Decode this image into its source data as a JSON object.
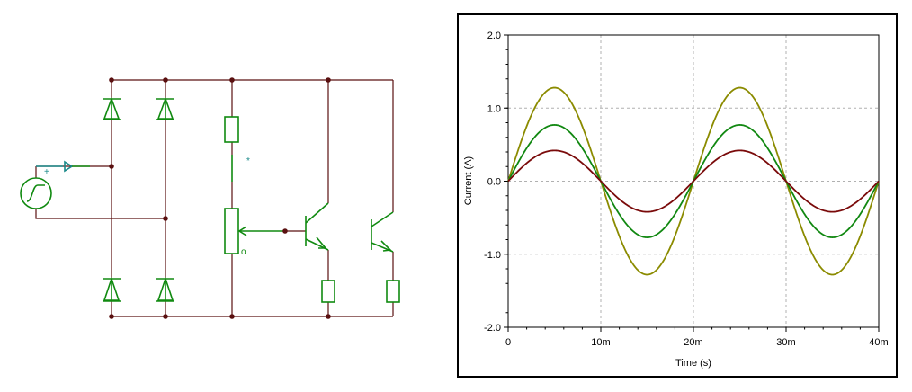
{
  "schematic": {
    "wire_color": "#5a1010",
    "component_color": "#108a10",
    "accent_color": "#1a8a8a",
    "source_plus": "+",
    "asterisk": "*",
    "wiper_mark": "o"
  },
  "chart_data": {
    "type": "line",
    "title": "",
    "xlabel": "Time (s)",
    "ylabel": "Current (A)",
    "xlim": [
      0,
      0.04
    ],
    "ylim": [
      -2.0,
      2.0
    ],
    "grid": true,
    "x_tick_labels": [
      "0",
      "10m",
      "20m",
      "30m",
      "40m"
    ],
    "y_tick_labels": [
      "2.0",
      "1.0",
      "0.0",
      "-1.0",
      "-2.0"
    ],
    "x_ticks": [
      0,
      0.01,
      0.02,
      0.03,
      0.04
    ],
    "y_ticks": [
      2.0,
      1.0,
      0.0,
      -1.0,
      -2.0
    ],
    "frequency_hz": 50,
    "series": [
      {
        "color": "#8b8b00",
        "amplitude": 1.28
      },
      {
        "color": "#118811",
        "amplitude": 0.77
      },
      {
        "color": "#7a0a0a",
        "amplitude": 0.42
      }
    ]
  }
}
